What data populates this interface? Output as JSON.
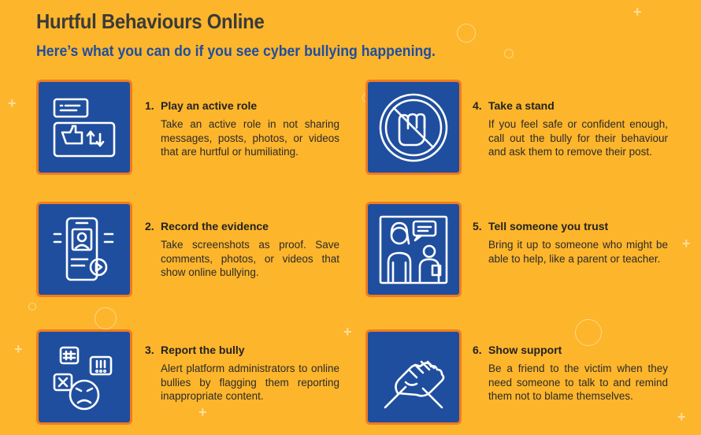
{
  "header": {
    "title": "Hurtful Behaviours Online",
    "subtitle": "Here’s what you can do if you see cyber bullying happening."
  },
  "colors": {
    "background": "#FDB52B",
    "tile": "#1F4E9E",
    "tile_border": "#F07B22",
    "subtitle": "#1F4E9E"
  },
  "items": [
    {
      "num": "1.",
      "title": "Play an active role",
      "body": "Take an active role in not sharing messages, posts, photos, or videos that are hurtful or humiliating.",
      "icon": "chat-dislike-share-icon"
    },
    {
      "num": "2.",
      "title": "Record the evidence",
      "body": "Take screenshots as proof. Save comments, photos, or videos that show online bullying.",
      "icon": "phone-record-icon"
    },
    {
      "num": "3.",
      "title": "Report the bully",
      "body": "Alert platform administrators to online bullies by flagging them reporting inappropriate content.",
      "icon": "angry-speech-icon"
    },
    {
      "num": "4.",
      "title": "Take a stand",
      "body": "If you feel safe or confident enough, call out the bully for their behaviour and ask them to remove their post.",
      "icon": "no-fist-icon"
    },
    {
      "num": "5.",
      "title": "Tell someone you trust",
      "body": "Bring it up to someone who might be able to help, like a parent or teacher.",
      "icon": "people-talking-icon"
    },
    {
      "num": "6.",
      "title": "Show support",
      "body": "Be a friend to the victim when they need someone to talk to and remind them not to blame themselves.",
      "icon": "handshake-icon"
    }
  ]
}
